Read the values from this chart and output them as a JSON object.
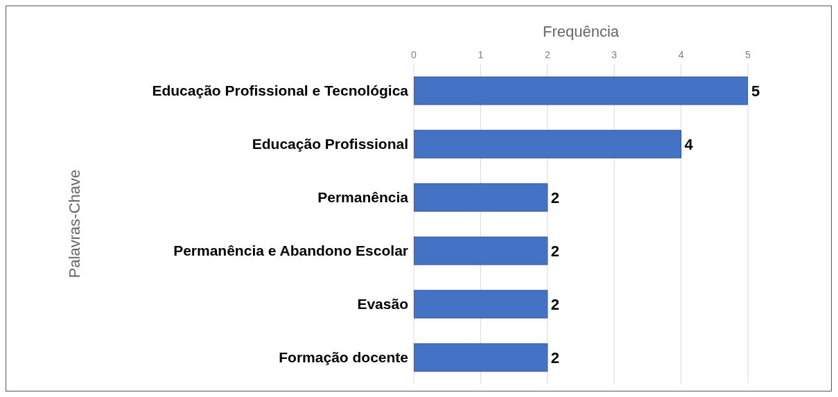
{
  "chart_data": {
    "type": "bar",
    "orientation": "horizontal",
    "xlabel": "Frequência",
    "ylabel": "Palavras-Chave",
    "categories": [
      "Educação Profissional e Tecnológica",
      "Educação Profissional",
      "Permanência",
      "Permanência e Abandono Escolar",
      "Evasão",
      "Formação docente"
    ],
    "values": [
      5,
      4,
      2,
      2,
      2,
      2
    ],
    "color": "#4472c4",
    "xlim": [
      0,
      5
    ],
    "xticks": [
      0,
      1,
      2,
      3,
      4,
      5
    ],
    "grid": "x",
    "data_labels": true
  }
}
